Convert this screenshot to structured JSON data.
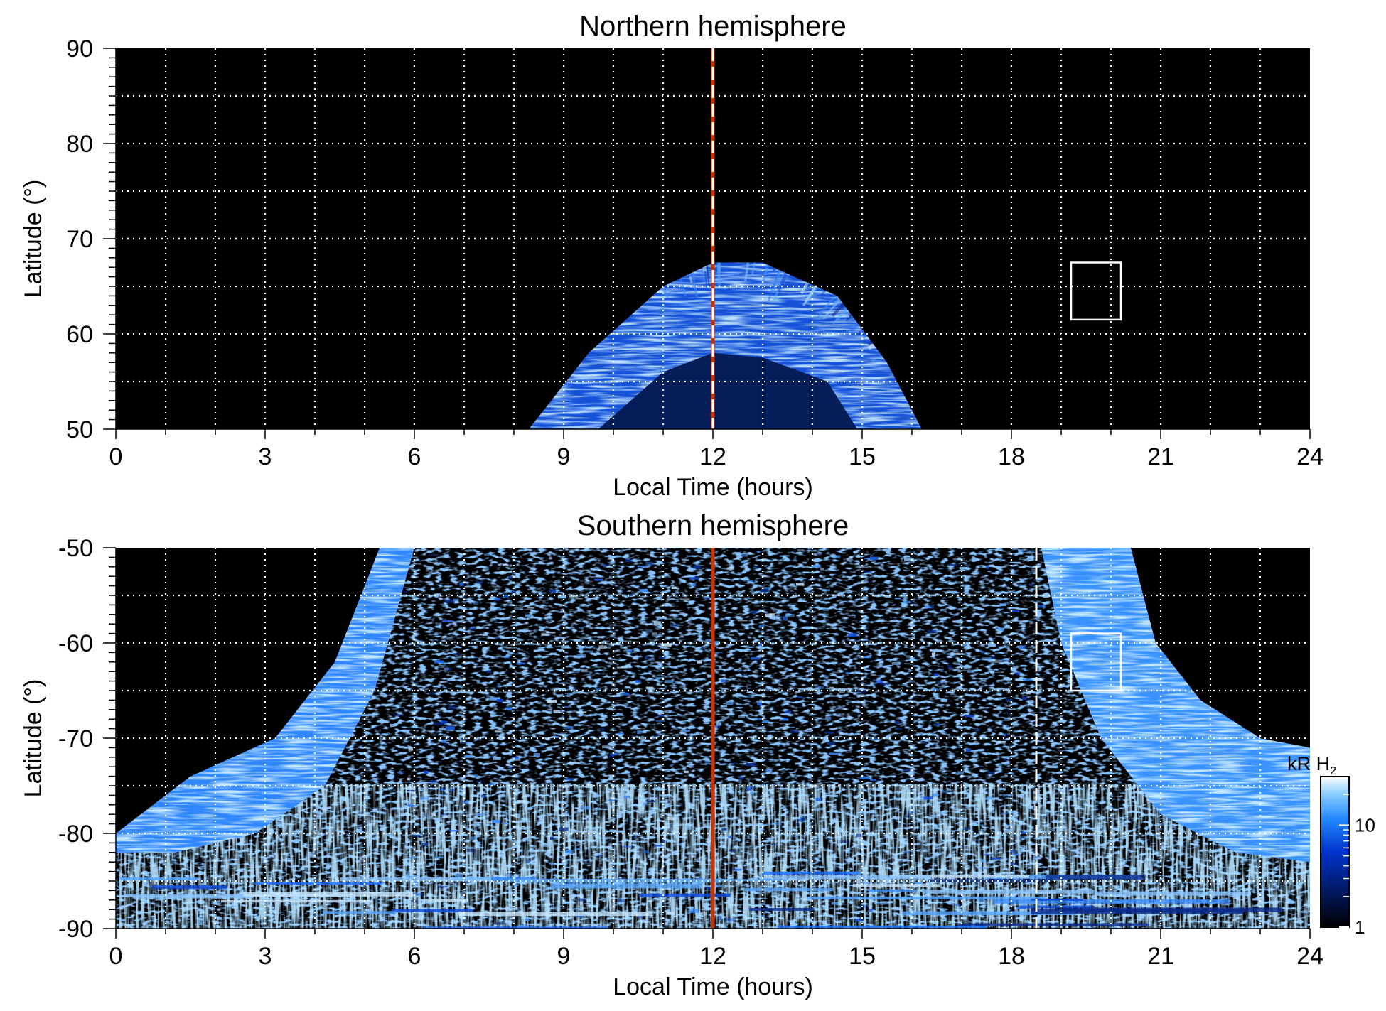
{
  "chart_data": [
    {
      "type": "heatmap",
      "title": "Northern hemisphere",
      "xlabel": "Local Time (hours)",
      "ylabel": "Latitude (°)",
      "xlim": [
        0,
        24
      ],
      "ylim": [
        50,
        90
      ],
      "xticks": [
        "0",
        "3",
        "6",
        "9",
        "12",
        "15",
        "18",
        "21",
        "24"
      ],
      "yticks": [
        "50",
        "60",
        "70",
        "80",
        "90"
      ],
      "grid": true,
      "background": "#000000",
      "emission": {
        "shape": "arc centred near noon",
        "center_lt": 12.2,
        "outer_edge": [
          [
            8.3,
            50
          ],
          [
            9.5,
            58
          ],
          [
            11,
            65
          ],
          [
            12,
            67.5
          ],
          [
            13,
            67.5
          ],
          [
            14.5,
            64
          ],
          [
            15.5,
            57
          ],
          [
            16.2,
            50
          ]
        ],
        "inner_edge": [
          [
            9.7,
            50
          ],
          [
            11,
            56
          ],
          [
            12,
            58
          ],
          [
            13,
            57.5
          ],
          [
            14.3,
            55
          ],
          [
            14.9,
            50
          ]
        ]
      },
      "markers": [
        {
          "type": "vertical_line",
          "x": 12,
          "style": "solid",
          "color": "#cc3300"
        },
        {
          "type": "vertical_line",
          "x": 12,
          "style": "dashed",
          "color": "#ffffff"
        },
        {
          "type": "box",
          "x": [
            19.2,
            20.2
          ],
          "y": [
            61.5,
            67.5
          ],
          "color": "#ffffff"
        }
      ]
    },
    {
      "type": "heatmap",
      "title": "Southern hemisphere",
      "xlabel": "Local Time (hours)",
      "ylabel": "Latitude (°)",
      "xlim": [
        0,
        24
      ],
      "ylim": [
        -90,
        -50
      ],
      "xticks": [
        "0",
        "3",
        "6",
        "9",
        "12",
        "15",
        "18",
        "21",
        "24"
      ],
      "yticks": [
        "-50",
        "-60",
        "-70",
        "-80",
        "-90"
      ],
      "grid": true,
      "background": "#000000",
      "emission": {
        "shape": "bright oval band plus diffuse polar-cap emission",
        "band_left_outer": [
          [
            5.3,
            -50
          ],
          [
            4.4,
            -62
          ],
          [
            3.2,
            -70
          ],
          [
            1.5,
            -74
          ],
          [
            0,
            -80
          ]
        ],
        "band_left_inner": [
          [
            6,
            -50
          ],
          [
            5.2,
            -65
          ],
          [
            4.2,
            -75
          ],
          [
            2.8,
            -80
          ],
          [
            1.2,
            -82
          ]
        ],
        "band_right_outer": [
          [
            18.6,
            -50
          ],
          [
            19,
            -60
          ],
          [
            19.8,
            -70
          ],
          [
            21,
            -78
          ],
          [
            22.5,
            -82
          ],
          [
            24,
            -83
          ]
        ],
        "band_right_inner": [
          [
            20.4,
            -50
          ],
          [
            20.9,
            -60
          ],
          [
            21.8,
            -66
          ],
          [
            23,
            -70
          ],
          [
            24,
            -71
          ]
        ]
      },
      "markers": [
        {
          "type": "vertical_line",
          "x": 12,
          "style": "solid",
          "color": "#cc3300"
        },
        {
          "type": "vertical_line",
          "x": 18.5,
          "style": "dashed",
          "color": "#ffffff"
        },
        {
          "type": "box",
          "x": [
            19.2,
            20.2
          ],
          "y": [
            -65,
            -59
          ],
          "color": "#ffffff"
        }
      ]
    }
  ],
  "colorbar": {
    "label_prefix": "kR H",
    "label_subscript": "2",
    "scale": "log",
    "range": [
      1,
      30
    ],
    "ticks": [
      "1",
      "10"
    ],
    "colors": [
      "#000000",
      "#001a66",
      "#0033cc",
      "#2288ff",
      "#88ccff",
      "#ffffff"
    ]
  }
}
